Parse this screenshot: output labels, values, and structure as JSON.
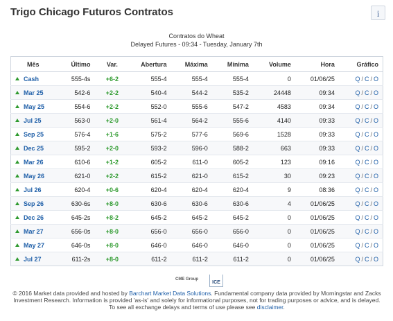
{
  "header": {
    "title": "Trigo Chicago Futuros Contratos",
    "info_label": "i",
    "subtitle_1": "Contratos do Wheat",
    "subtitle_2": "Delayed Futures - 09:34 - Tuesday, January 7th"
  },
  "colors": {
    "positive": "#2e9a2e",
    "link": "#1f5fa8",
    "border": "#cfd6df"
  },
  "table": {
    "columns": [
      "Mês",
      "Último",
      "Var.",
      "Abertura",
      "Máxima",
      "Mínima",
      "Volume",
      "Hora",
      "Gráfico"
    ],
    "rows": [
      {
        "month": "Cash",
        "last": "555-4s",
        "change": "+6-2",
        "open": "555-4",
        "high": "555-4",
        "low": "555-4",
        "volume": "0",
        "time": "01/06/25"
      },
      {
        "month": "Mar 25",
        "last": "542-6",
        "change": "+2-2",
        "open": "540-4",
        "high": "544-2",
        "low": "535-2",
        "volume": "24448",
        "time": "09:34"
      },
      {
        "month": "May 25",
        "last": "554-6",
        "change": "+2-2",
        "open": "552-0",
        "high": "555-6",
        "low": "547-2",
        "volume": "4583",
        "time": "09:34"
      },
      {
        "month": "Jul 25",
        "last": "563-0",
        "change": "+2-0",
        "open": "561-4",
        "high": "564-2",
        "low": "555-6",
        "volume": "4140",
        "time": "09:33"
      },
      {
        "month": "Sep 25",
        "last": "576-4",
        "change": "+1-6",
        "open": "575-2",
        "high": "577-6",
        "low": "569-6",
        "volume": "1528",
        "time": "09:33"
      },
      {
        "month": "Dec 25",
        "last": "595-2",
        "change": "+2-0",
        "open": "593-2",
        "high": "596-0",
        "low": "588-2",
        "volume": "663",
        "time": "09:33"
      },
      {
        "month": "Mar 26",
        "last": "610-6",
        "change": "+1-2",
        "open": "605-2",
        "high": "611-0",
        "low": "605-2",
        "volume": "123",
        "time": "09:16"
      },
      {
        "month": "May 26",
        "last": "621-0",
        "change": "+2-2",
        "open": "615-2",
        "high": "621-0",
        "low": "615-2",
        "volume": "30",
        "time": "09:23"
      },
      {
        "month": "Jul 26",
        "last": "620-4",
        "change": "+0-6",
        "open": "620-4",
        "high": "620-4",
        "low": "620-4",
        "volume": "9",
        "time": "08:36"
      },
      {
        "month": "Sep 26",
        "last": "630-6s",
        "change": "+8-0",
        "open": "630-6",
        "high": "630-6",
        "low": "630-6",
        "volume": "4",
        "time": "01/06/25"
      },
      {
        "month": "Dec 26",
        "last": "645-2s",
        "change": "+8-2",
        "open": "645-2",
        "high": "645-2",
        "low": "645-2",
        "volume": "0",
        "time": "01/06/25"
      },
      {
        "month": "Mar 27",
        "last": "656-0s",
        "change": "+8-0",
        "open": "656-0",
        "high": "656-0",
        "low": "656-0",
        "volume": "0",
        "time": "01/06/25"
      },
      {
        "month": "May 27",
        "last": "646-0s",
        "change": "+8-0",
        "open": "646-0",
        "high": "646-0",
        "low": "646-0",
        "volume": "0",
        "time": "01/06/25"
      },
      {
        "month": "Jul 27",
        "last": "611-2s",
        "change": "+8-0",
        "open": "611-2",
        "high": "611-2",
        "low": "611-2",
        "volume": "0",
        "time": "01/06/25"
      }
    ],
    "chart_links": [
      "Q",
      "C",
      "O"
    ],
    "chart_sep": "/",
    "row_icon": "up-arrow-icon"
  },
  "logos": {
    "cme": "CME Group",
    "ice": "ICE"
  },
  "footer": {
    "part1": "© 2016 Market data provided and hosted by ",
    "link1": "Barchart Market Data Solutions",
    "part2": ". Fundamental company data provided by Morningstar and Zacks Investment Research. Information is provided 'as-is' and solely for informational purposes, not for trading purposes or advice, and is delayed. To see all exchange delays and terms of use please see ",
    "link2": "disclaimer",
    "part3": "."
  }
}
